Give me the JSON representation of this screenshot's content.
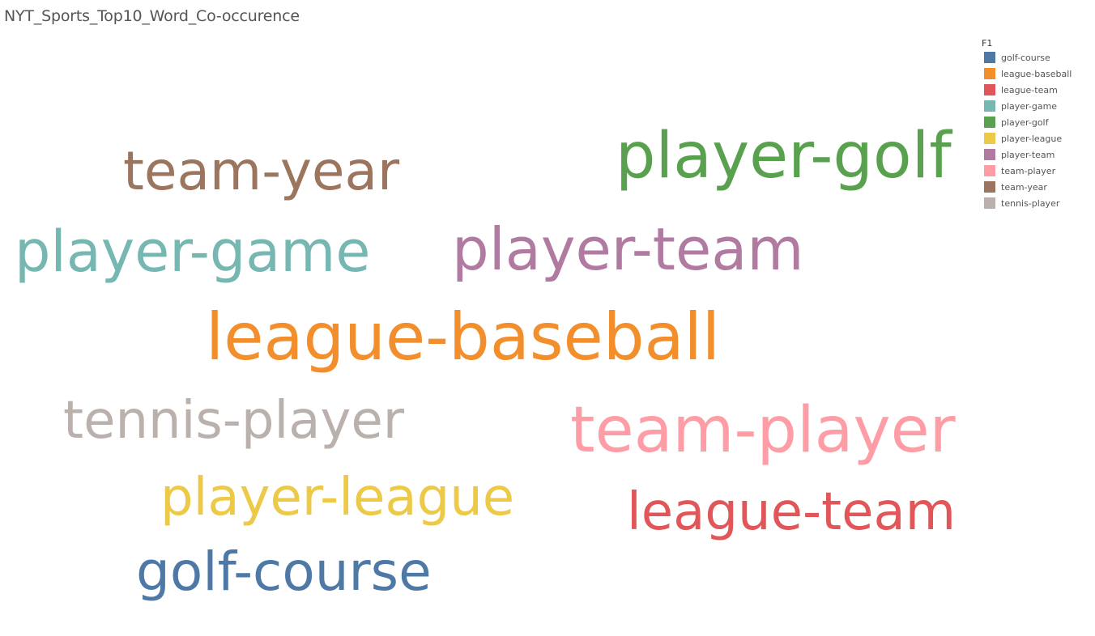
{
  "chart_data": {
    "type": "wordcloud",
    "title": "NYT_Sports_Top10_Word_Co-occurence",
    "legend": {
      "title": "F1",
      "placement": "top-right",
      "items": [
        {
          "label": "golf-course",
          "color": "#4e79a7"
        },
        {
          "label": "league-baseball",
          "color": "#f28e2b"
        },
        {
          "label": "league-team",
          "color": "#e15759"
        },
        {
          "label": "player-game",
          "color": "#76b7b2"
        },
        {
          "label": "player-golf",
          "color": "#59a14f"
        },
        {
          "label": "player-league",
          "color": "#edc948"
        },
        {
          "label": "player-team",
          "color": "#b07aa1"
        },
        {
          "label": "team-player",
          "color": "#ff9da7"
        },
        {
          "label": "team-year",
          "color": "#9c755f"
        },
        {
          "label": "tennis-player",
          "color": "#bab0ac"
        }
      ]
    },
    "words": [
      {
        "text": "player-golf",
        "rank": 1,
        "color": "#59a14f"
      },
      {
        "text": "league-baseball",
        "rank": 2,
        "color": "#f28e2b"
      },
      {
        "text": "team-player",
        "rank": 3,
        "color": "#ff9da7"
      },
      {
        "text": "player-team",
        "rank": 4,
        "color": "#b07aa1"
      },
      {
        "text": "player-game",
        "rank": 5,
        "color": "#76b7b2"
      },
      {
        "text": "team-year",
        "rank": 6,
        "color": "#9c755f"
      },
      {
        "text": "league-team",
        "rank": 7,
        "color": "#e15759"
      },
      {
        "text": "tennis-player",
        "rank": 8,
        "color": "#bab0ac"
      },
      {
        "text": "golf-course",
        "rank": 9,
        "color": "#4e79a7"
      },
      {
        "text": "player-league",
        "rank": 10,
        "color": "#edc948"
      }
    ]
  }
}
